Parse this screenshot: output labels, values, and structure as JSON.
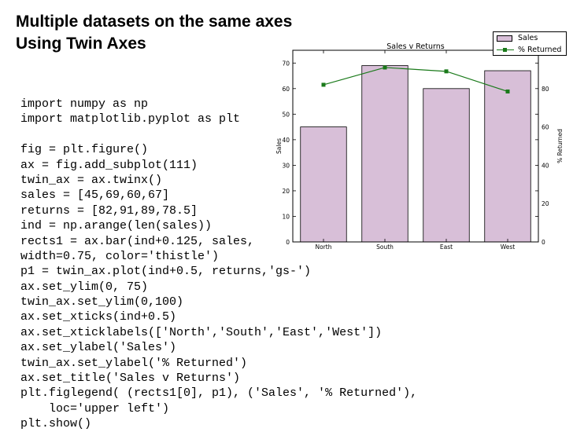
{
  "slide": {
    "title_line1": "Multiple datasets on the same axes",
    "title_line2": "Using Twin Axes"
  },
  "code_lines": [
    "import numpy as np",
    "import matplotlib.pyplot as plt",
    "",
    "fig = plt.figure()",
    "ax = fig.add_subplot(111)",
    "twin_ax = ax.twinx()",
    "sales = [45,69,60,67]",
    "returns = [82,91,89,78.5]",
    "ind = np.arange(len(sales))",
    "rects1 = ax.bar(ind+0.125, sales,",
    "width=0.75, color='thistle')",
    "p1 = twin_ax.plot(ind+0.5, returns,'gs-')",
    "ax.set_ylim(0, 75)",
    "twin_ax.set_ylim(0,100)",
    "ax.set_xticks(ind+0.5)",
    "ax.set_xticklabels(['North','South','East','West'])",
    "ax.set_ylabel('Sales')",
    "twin_ax.set_ylabel('% Returned')",
    "ax.set_title('Sales v Returns')",
    "plt.figlegend( (rects1[0], p1), ('Sales', '% Returned'),",
    "    loc='upper left')",
    "plt.show()"
  ],
  "chart_data": {
    "type": "bar",
    "title": "Sales v Returns",
    "categories": [
      "North",
      "South",
      "East",
      "West"
    ],
    "series": [
      {
        "name": "Sales",
        "type": "bar",
        "axis": "left",
        "values": [
          45,
          69,
          60,
          67
        ],
        "color": "#d8bfd8"
      },
      {
        "name": "% Returned",
        "type": "line",
        "axis": "right",
        "values": [
          82,
          91,
          89,
          78.5
        ],
        "color": "#1a7a1a",
        "marker": "square"
      }
    ],
    "ylabel": "Sales",
    "ylabel_right": "% Returned",
    "ylim": [
      0,
      75
    ],
    "ylim_right": [
      0,
      100
    ],
    "yticks": [
      0,
      10,
      20,
      30,
      40,
      50,
      60,
      70
    ],
    "yticks_right": [
      0,
      20,
      40,
      60,
      80
    ],
    "grid": false,
    "legend": "top-right"
  }
}
